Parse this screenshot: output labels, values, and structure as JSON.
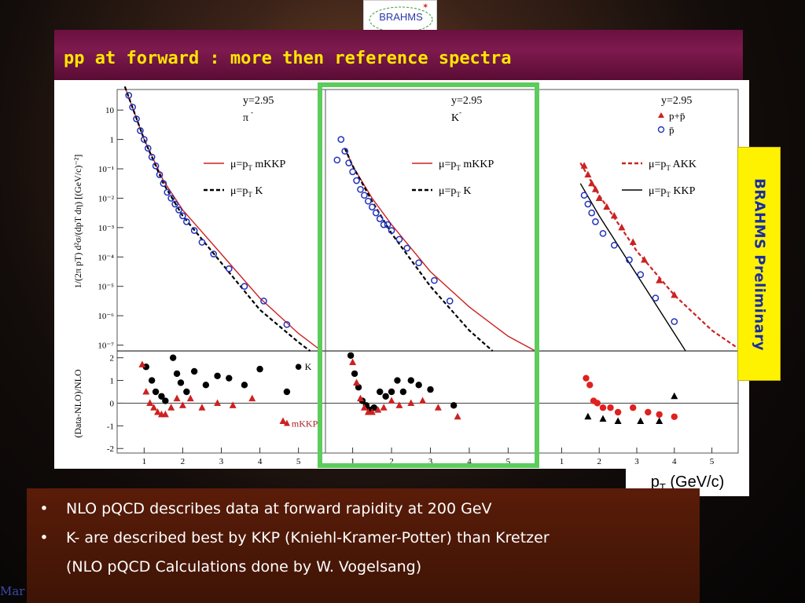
{
  "logo": {
    "text": "BRAHMS"
  },
  "title": "pp at forward : more then  reference spectra",
  "preliminary": "BRAHMS Preliminary",
  "xaxis_label": {
    "main": "p",
    "sub": "T",
    "unit": " (GeV/c)"
  },
  "bullets": [
    {
      "marker": "•",
      "text": "NLO pQCD describes data at forward rapidity at 200 GeV"
    },
    {
      "marker": "•",
      "text": "K- are described best by KKP (Kniehl-Kramer-Potter) than Kretzer"
    },
    {
      "marker": "",
      "text": "(NLO pQCD Calculations done by W. Vogelsang)"
    }
  ],
  "footer": "Mar",
  "colors": {
    "title_text": "#ffe600",
    "title_bar": "#7e1a4e",
    "highlight_box": "#5ccc5c",
    "theory_red": "#cc2222",
    "data_blue": "#2233bb",
    "prelim_bg": "#fff200"
  },
  "chart_data": [
    {
      "type": "scatter",
      "panel": "pi-",
      "labels": [
        "y=2.95",
        "π",
        "-"
      ],
      "legend": [
        {
          "name": "μ=p",
          "sub": "T",
          "suffix": " mKKP",
          "style": "solid",
          "color": "#cc2222"
        },
        {
          "name": "μ=p",
          "sub": "T",
          "suffix": " K",
          "style": "dashed",
          "color": "#000000"
        }
      ],
      "ylabel": "1/(2π pT) d²σ/(dpT dη) [(GeV/c)⁻²]",
      "yticks": [
        "10",
        "1",
        "10⁻¹",
        "10⁻²",
        "10⁻³",
        "10⁻⁴",
        "10⁻⁵",
        "10⁻⁶",
        "10⁻⁷"
      ],
      "ylog_range": [
        -7.2,
        1.7
      ],
      "xlim": [
        0.3,
        5.7
      ],
      "xticks": [
        "1",
        "2",
        "3",
        "4",
        "5"
      ],
      "data": {
        "x": [
          0.6,
          0.7,
          0.8,
          0.9,
          1.0,
          1.1,
          1.2,
          1.3,
          1.4,
          1.5,
          1.6,
          1.7,
          1.8,
          1.9,
          2.0,
          2.1,
          2.3,
          2.5,
          2.8,
          3.2,
          3.6,
          4.1,
          4.7
        ],
        "y": [
          1.5,
          1.1,
          0.7,
          0.3,
          0.0,
          -0.3,
          -0.6,
          -0.9,
          -1.2,
          -1.5,
          -1.8,
          -2.0,
          -2.2,
          -2.4,
          -2.6,
          -2.8,
          -3.1,
          -3.5,
          -3.9,
          -4.4,
          -5.0,
          -5.5,
          -6.3
        ]
      },
      "mkkp": {
        "x": [
          0.5,
          1.0,
          1.5,
          2.0,
          3.0,
          4.0,
          5.0,
          5.6
        ],
        "y": [
          1.8,
          0.0,
          -1.4,
          -2.4,
          -3.9,
          -5.4,
          -6.6,
          -7.2
        ]
      },
      "kretzer": {
        "x": [
          0.5,
          1.0,
          1.5,
          2.0,
          3.0,
          4.0,
          5.0,
          5.3
        ],
        "y": [
          1.8,
          0.0,
          -1.5,
          -2.6,
          -4.2,
          -5.8,
          -6.9,
          -7.2
        ]
      },
      "ratio": {
        "ylabel": "(Data-NLO)/NLO",
        "yticks": [
          "2",
          "1",
          "0",
          "-1",
          "-2"
        ],
        "ylim": [
          -2.2,
          2.3
        ],
        "legend": [
          {
            "name": "K",
            "marker": "circle"
          },
          {
            "name": "mKKP",
            "marker": "triangle"
          }
        ],
        "k": {
          "x": [
            1.05,
            1.2,
            1.3,
            1.45,
            1.55,
            1.75,
            1.85,
            1.95,
            2.1,
            2.3,
            2.6,
            2.9,
            3.2,
            3.6,
            4.0,
            4.7
          ],
          "y": [
            1.6,
            1.0,
            0.5,
            0.3,
            0.1,
            2.0,
            1.3,
            0.9,
            0.5,
            1.4,
            0.8,
            1.2,
            1.1,
            0.8,
            1.5,
            0.5
          ]
        },
        "mkkp": {
          "x": [
            0.95,
            1.05,
            1.15,
            1.25,
            1.35,
            1.45,
            1.55,
            1.7,
            1.85,
            2.0,
            2.2,
            2.5,
            2.9,
            3.3,
            3.8,
            4.6
          ],
          "y": [
            1.7,
            0.5,
            0.0,
            -0.2,
            -0.4,
            -0.5,
            -0.5,
            -0.2,
            0.2,
            -0.1,
            0.2,
            -0.2,
            0.0,
            -0.1,
            0.2,
            -0.8
          ]
        }
      }
    },
    {
      "type": "scatter",
      "panel": "K-",
      "labels": [
        "y=2.95",
        "K",
        "-"
      ],
      "legend": [
        {
          "name": "μ=p",
          "sub": "T",
          "suffix": " mKKP",
          "style": "solid",
          "color": "#cc2222"
        },
        {
          "name": "μ=p",
          "sub": "T",
          "suffix": " K",
          "style": "dashed",
          "color": "#000000"
        }
      ],
      "xlim": [
        0.3,
        5.7
      ],
      "xticks": [
        "1",
        "2",
        "3",
        "4",
        "5"
      ],
      "data": {
        "x": [
          0.6,
          0.7,
          0.8,
          0.9,
          1.0,
          1.1,
          1.2,
          1.3,
          1.4,
          1.5,
          1.6,
          1.7,
          1.8,
          1.9,
          2.0,
          2.2,
          2.4,
          2.7,
          3.1,
          3.5
        ],
        "y": [
          -0.7,
          0.0,
          -0.4,
          -0.8,
          -1.1,
          -1.4,
          -1.7,
          -1.9,
          -2.1,
          -2.3,
          -2.5,
          -2.7,
          -2.9,
          -2.9,
          -3.1,
          -3.4,
          -3.7,
          -4.2,
          -4.8,
          -5.5
        ]
      },
      "mkkp": {
        "x": [
          0.8,
          1.0,
          1.5,
          2.0,
          3.0,
          4.0,
          5.0,
          5.7
        ],
        "y": [
          -0.3,
          -0.9,
          -2.0,
          -2.9,
          -4.5,
          -5.7,
          -6.7,
          -7.2
        ]
      },
      "kretzer": {
        "x": [
          0.8,
          1.0,
          1.5,
          2.0,
          3.0,
          4.0,
          4.6
        ],
        "y": [
          -0.3,
          -0.9,
          -2.1,
          -3.2,
          -5.0,
          -6.5,
          -7.2
        ]
      },
      "ratio": {
        "ylim": [
          -2.2,
          2.3
        ],
        "xticks": [
          "1",
          "2",
          "3",
          "4",
          "5"
        ],
        "k": {
          "x": [
            0.95,
            1.05,
            1.15,
            1.25,
            1.35,
            1.45,
            1.55,
            1.7,
            1.85,
            2.0,
            2.15,
            2.3,
            2.5,
            2.7,
            3.0,
            3.6
          ],
          "y": [
            2.1,
            1.3,
            0.7,
            0.1,
            -0.1,
            -0.3,
            -0.2,
            0.5,
            0.3,
            0.5,
            1.0,
            0.5,
            1.0,
            0.8,
            0.6,
            -0.1
          ]
        },
        "mkkp": {
          "x": [
            1.0,
            1.1,
            1.2,
            1.3,
            1.4,
            1.5,
            1.65,
            1.8,
            2.0,
            2.2,
            2.5,
            2.8,
            3.2,
            3.7
          ],
          "y": [
            1.8,
            0.9,
            0.2,
            -0.2,
            -0.4,
            -0.4,
            -0.3,
            -0.2,
            0.1,
            -0.1,
            0.0,
            0.1,
            -0.2,
            -0.6
          ]
        }
      }
    },
    {
      "type": "scatter",
      "panel": "protons",
      "labels": [
        "y=2.95"
      ],
      "legend_markers": [
        {
          "name": "p+p̄",
          "marker": "triangle",
          "color": "#cc2222"
        },
        {
          "name": "p̄",
          "marker": "open-circle",
          "color": "#2233bb"
        }
      ],
      "legend": [
        {
          "name": "μ=p",
          "sub": "T",
          "suffix": " AKK",
          "style": "dashed",
          "color": "#cc2222"
        },
        {
          "name": "μ=p",
          "sub": "T",
          "suffix": " KKP",
          "style": "solid",
          "color": "#000000"
        }
      ],
      "xlim": [
        0.3,
        5.7
      ],
      "xticks": [
        "1",
        "2",
        "3",
        "4",
        "5"
      ],
      "ppbar": {
        "x": [
          1.6,
          1.7,
          1.8,
          1.9,
          2.0,
          2.2,
          2.4,
          2.6,
          2.9,
          3.2,
          3.6,
          4.0
        ],
        "y": [
          -0.9,
          -1.2,
          -1.5,
          -1.7,
          -2.0,
          -2.3,
          -2.6,
          -3.0,
          -3.5,
          -4.1,
          -4.8,
          -5.3
        ]
      },
      "pbar": {
        "x": [
          1.6,
          1.7,
          1.8,
          1.9,
          2.1,
          2.4,
          2.8,
          3.1,
          3.5,
          4.0
        ],
        "y": [
          -1.9,
          -2.2,
          -2.5,
          -2.8,
          -3.2,
          -3.6,
          -4.1,
          -4.6,
          -5.4,
          -6.2
        ]
      },
      "akk": {
        "x": [
          1.5,
          2.0,
          3.0,
          4.0,
          5.0,
          5.8
        ],
        "y": [
          -0.8,
          -1.9,
          -3.8,
          -5.3,
          -6.5,
          -7.2
        ]
      },
      "kkp": {
        "x": [
          1.5,
          2.0,
          3.0,
          4.0,
          4.3
        ],
        "y": [
          -1.5,
          -2.6,
          -4.6,
          -6.6,
          -7.2
        ]
      },
      "ratio": {
        "ylim": [
          -2.2,
          2.3
        ],
        "xticks": [
          "1",
          "2",
          "3",
          "4",
          "5"
        ],
        "red": {
          "x": [
            1.65,
            1.75,
            1.85,
            1.95,
            2.1,
            2.3,
            2.5,
            2.9,
            3.3,
            3.6,
            4.0
          ],
          "y": [
            1.1,
            0.8,
            0.1,
            0.0,
            -0.2,
            -0.2,
            -0.4,
            -0.2,
            -0.4,
            -0.5,
            -0.6
          ]
        },
        "black": {
          "x": [
            1.7,
            2.1,
            2.5,
            3.1,
            3.6,
            4.0
          ],
          "y": [
            -0.6,
            -0.7,
            -0.8,
            -0.8,
            -0.8,
            0.3
          ]
        }
      }
    }
  ]
}
